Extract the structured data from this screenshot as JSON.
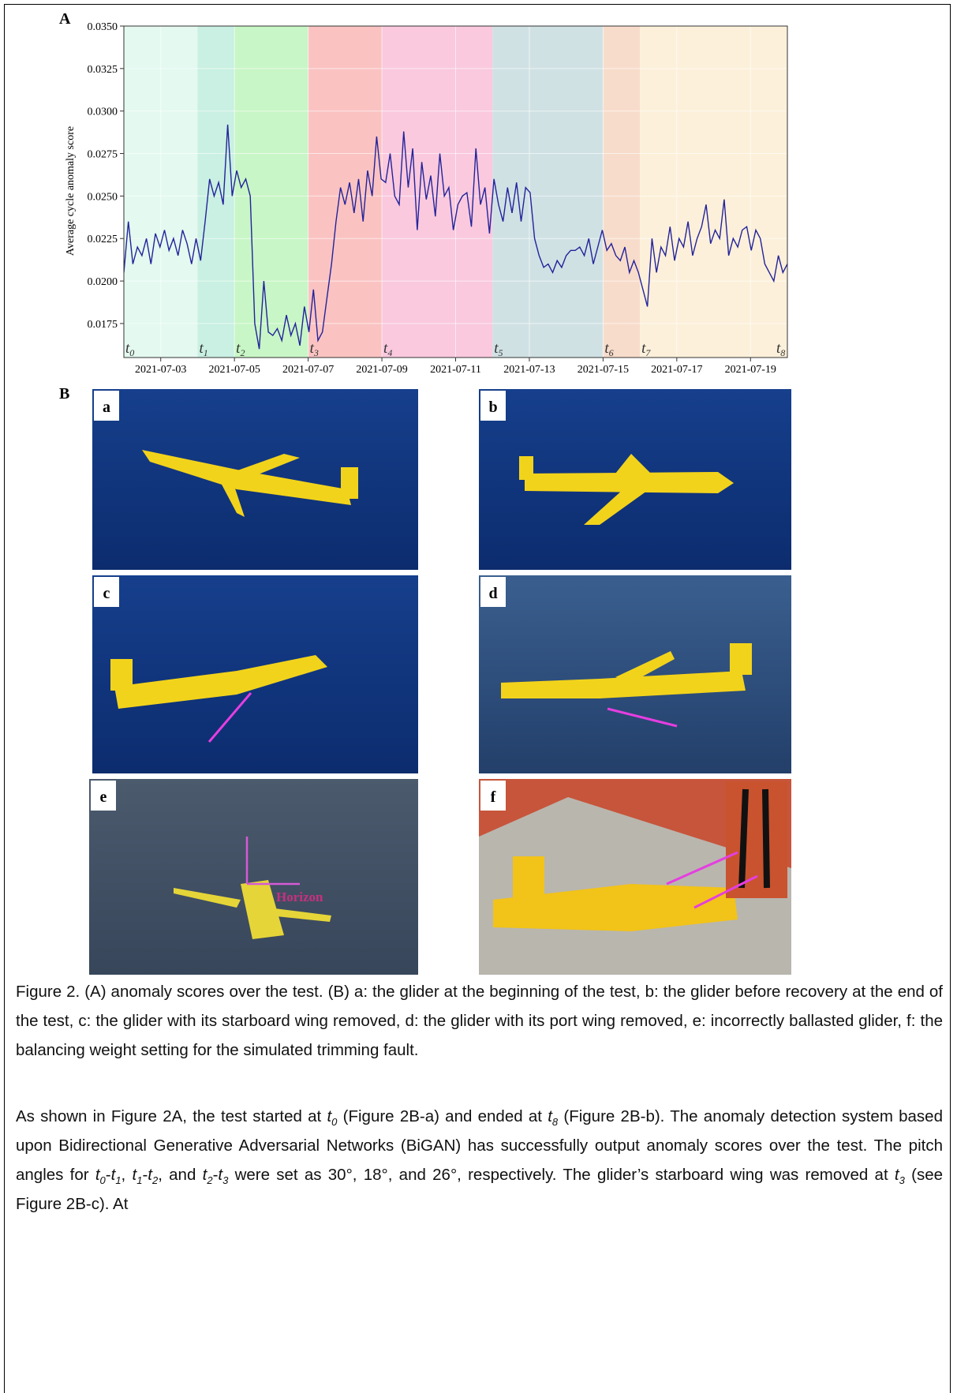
{
  "figure": {
    "panel_a_label": "A",
    "panel_b_label": "B"
  },
  "chart_data": {
    "type": "line",
    "y_label": "Average cycle anomaly score",
    "xlim": [
      "2021-07-02",
      "2021-07-20"
    ],
    "xticks": [
      "2021-07-03",
      "2021-07-05",
      "2021-07-07",
      "2021-07-09",
      "2021-07-11",
      "2021-07-13",
      "2021-07-15",
      "2021-07-17",
      "2021-07-19"
    ],
    "ylim": [
      0.0155,
      0.035
    ],
    "yticks": [
      0.0175,
      {
        "value": 0.02,
        "label": "0.0200"
      },
      0.0225,
      {
        "value": 0.025,
        "label": "0.0250"
      },
      0.0275,
      {
        "value": 0.03,
        "label": "0.0300"
      },
      0.0325,
      {
        "value": 0.035,
        "label": "0.0350"
      }
    ],
    "grid": true,
    "color": "#23239a",
    "values": [
      0.0205,
      0.0235,
      0.021,
      0.022,
      0.0215,
      0.0225,
      0.021,
      0.0228,
      0.022,
      0.023,
      0.0218,
      0.0225,
      0.0215,
      0.023,
      0.0222,
      0.021,
      0.0225,
      0.0212,
      0.0235,
      0.026,
      0.025,
      0.0258,
      0.0245,
      0.0292,
      0.025,
      0.0265,
      0.0255,
      0.026,
      0.025,
      0.0175,
      0.016,
      0.02,
      0.017,
      0.0168,
      0.0172,
      0.0165,
      0.018,
      0.0168,
      0.0175,
      0.0162,
      0.0185,
      0.017,
      0.0195,
      0.0165,
      0.017,
      0.019,
      0.021,
      0.0235,
      0.0255,
      0.0245,
      0.0258,
      0.024,
      0.026,
      0.0235,
      0.0265,
      0.025,
      0.0285,
      0.026,
      0.0258,
      0.0275,
      0.025,
      0.0245,
      0.0288,
      0.0255,
      0.0278,
      0.023,
      0.027,
      0.0248,
      0.0262,
      0.0238,
      0.0275,
      0.025,
      0.0255,
      0.023,
      0.0245,
      0.025,
      0.0252,
      0.0232,
      0.0278,
      0.0245,
      0.0255,
      0.0228,
      0.026,
      0.0245,
      0.0235,
      0.0255,
      0.024,
      0.0258,
      0.0235,
      0.0255,
      0.0252,
      0.0225,
      0.0215,
      0.0208,
      0.021,
      0.0205,
      0.0212,
      0.0208,
      0.0215,
      0.0218,
      0.0218,
      0.022,
      0.0215,
      0.0225,
      0.021,
      0.022,
      0.023,
      0.0218,
      0.0222,
      0.0215,
      0.0212,
      0.022,
      0.0205,
      0.0212,
      0.0205,
      0.0195,
      0.0185,
      0.0225,
      0.0205,
      0.022,
      0.0215,
      0.0232,
      0.0212,
      0.0225,
      0.022,
      0.0235,
      0.0215,
      0.0225,
      0.0232,
      0.0245,
      0.0222,
      0.023,
      0.0225,
      0.0248,
      0.0215,
      0.0225,
      0.022,
      0.023,
      0.0232,
      0.0218,
      0.023,
      0.0225,
      0.021,
      0.0205,
      0.02,
      0.0215,
      0.0205,
      0.021
    ],
    "boundaries": [
      {
        "x": "2021-07-02",
        "label": "t",
        "sub": "0"
      },
      {
        "x": "2021-07-04",
        "label": "t",
        "sub": "1"
      },
      {
        "x": "2021-07-05",
        "label": "t",
        "sub": "2"
      },
      {
        "x": "2021-07-07",
        "label": "t",
        "sub": "3"
      },
      {
        "x": "2021-07-09",
        "label": "t",
        "sub": "4"
      },
      {
        "x": "2021-07-12",
        "label": "t",
        "sub": "5"
      },
      {
        "x": "2021-07-15",
        "label": "t",
        "sub": "6"
      },
      {
        "x": "2021-07-16",
        "label": "t",
        "sub": "7"
      },
      {
        "x": "2021-07-20",
        "label": "t",
        "sub": "8"
      }
    ],
    "region_colors": [
      "#e4f9f0",
      "#c9f0e2",
      "#c8f6c6",
      "#fac3c2",
      "#fac9de",
      "#d0e1e4",
      "#f8dccb",
      "#fcf0da"
    ]
  },
  "panels": [
    {
      "label": "a"
    },
    {
      "label": "b"
    },
    {
      "label": "c"
    },
    {
      "label": "d"
    },
    {
      "label": "e",
      "annotation": "Horizon"
    },
    {
      "label": "f"
    }
  ],
  "caption": "Figure 2. (A) anomaly scores over the test. (B) a: the glider at the beginning of the test, b: the glider before recovery at the end of the test, c: the glider with its starboard wing removed, d: the glider with its port wing removed, e:  incorrectly ballasted glider, f: the balancing weight setting for the simulated trimming fault.",
  "paragraph": [
    {
      "text": "As shown in Figure 2A, the test started at ",
      "style": "plain"
    },
    {
      "text": "t",
      "style": "italic"
    },
    {
      "text": "0",
      "style": "sub"
    },
    {
      "text": " (Figure 2B-a) and ended at ",
      "style": "plain"
    },
    {
      "text": "t",
      "style": "italic"
    },
    {
      "text": "8",
      "style": "sub"
    },
    {
      "text": " (Figure 2B-b). The anomaly detection system based upon Bidirectional Generative Adversarial Networks (BiGAN) has successfully output anomaly scores over the test. The pitch angles for ",
      "style": "plain"
    },
    {
      "text": "t",
      "style": "italic"
    },
    {
      "text": "0",
      "style": "sub"
    },
    {
      "text": "-",
      "style": "plain"
    },
    {
      "text": "t",
      "style": "italic"
    },
    {
      "text": "1",
      "style": "sub"
    },
    {
      "text": ", ",
      "style": "plain"
    },
    {
      "text": "t",
      "style": "italic"
    },
    {
      "text": "1",
      "style": "sub"
    },
    {
      "text": "-",
      "style": "plain"
    },
    {
      "text": "t",
      "style": "italic"
    },
    {
      "text": "2",
      "style": "sub"
    },
    {
      "text": ", and ",
      "style": "plain"
    },
    {
      "text": "t",
      "style": "italic"
    },
    {
      "text": "2",
      "style": "sub"
    },
    {
      "text": "-",
      "style": "plain"
    },
    {
      "text": "t",
      "style": "italic"
    },
    {
      "text": "3",
      "style": "sub"
    },
    {
      "text": " were set as 30°, 18°, and 26°, respectively. The glider’s starboard wing was removed at ",
      "style": "plain"
    },
    {
      "text": "t",
      "style": "italic"
    },
    {
      "text": "3",
      "style": "sub"
    },
    {
      "text": " (see Figure 2B-c). At",
      "style": "plain"
    }
  ]
}
